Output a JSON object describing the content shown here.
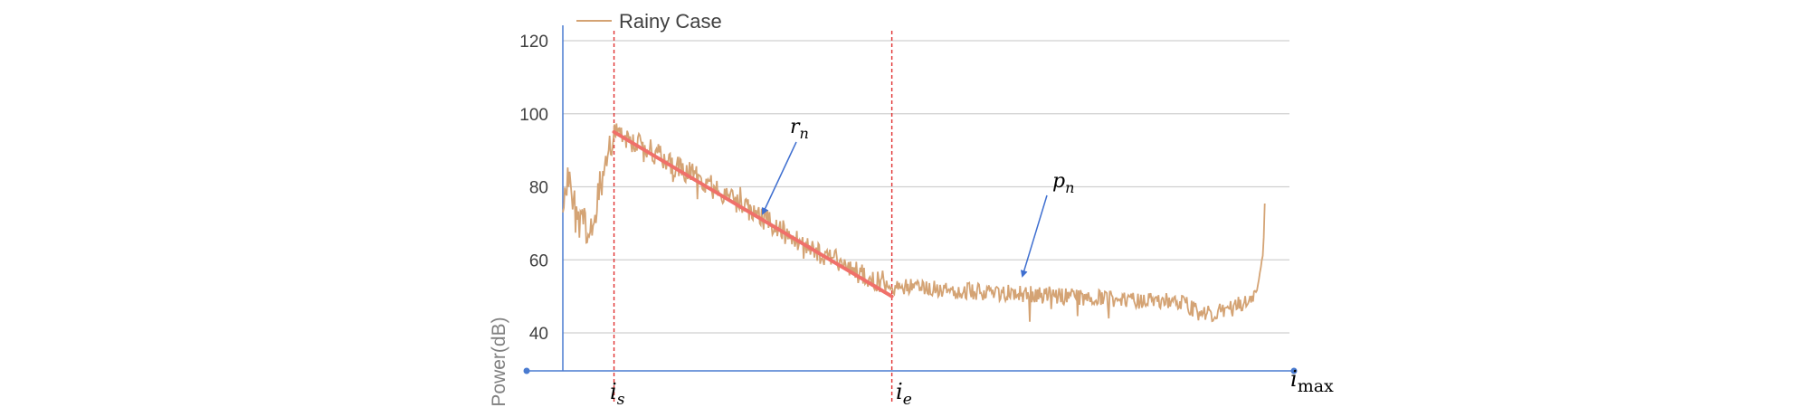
{
  "chart_data": {
    "type": "line",
    "ylabel": "Power(dB)",
    "ylim": [
      30,
      125
    ],
    "yticks": [
      "40",
      "60",
      "80",
      "100",
      "120"
    ],
    "ytick_values": [
      40,
      60,
      80,
      100,
      120
    ],
    "grid": true,
    "legend": {
      "placement": "top-left",
      "entries": [
        "Rainy Case"
      ]
    },
    "colors": {
      "series": "#d4a374",
      "fit": "#f0706a",
      "markers": "#e03030",
      "axis": "#4a7bd0",
      "arrow": "#3f6fd0",
      "grid": "#d0d0d0"
    },
    "series": [
      {
        "name": "Rainy Case",
        "x_range": [
          0,
          100
        ],
        "keypoints": [
          [
            0,
            78
          ],
          [
            1,
            84
          ],
          [
            2,
            68
          ],
          [
            3,
            70
          ],
          [
            4,
            66
          ],
          [
            5,
            80
          ],
          [
            6,
            88
          ],
          [
            7,
            95
          ],
          [
            8,
            94
          ],
          [
            10,
            92
          ],
          [
            12,
            90
          ],
          [
            15,
            86
          ],
          [
            18,
            83
          ],
          [
            22,
            78
          ],
          [
            26,
            73
          ],
          [
            30,
            68
          ],
          [
            34,
            63
          ],
          [
            38,
            59
          ],
          [
            42,
            55
          ],
          [
            45,
            53
          ],
          [
            50,
            52
          ],
          [
            60,
            51
          ],
          [
            70,
            50
          ],
          [
            78,
            49
          ],
          [
            83,
            49
          ],
          [
            86,
            47
          ],
          [
            89,
            45
          ],
          [
            92,
            47
          ],
          [
            94,
            50
          ],
          [
            95,
            52
          ],
          [
            95.8,
            62
          ],
          [
            96,
            76
          ]
        ]
      }
    ],
    "fit_line": {
      "name": "r_n",
      "from": [
        7,
        95
      ],
      "to": [
        45,
        50
      ]
    },
    "markers": [
      {
        "x": 7,
        "label": "i",
        "sub": "s"
      },
      {
        "x": 45,
        "label": "i",
        "sub": "e"
      }
    ],
    "x_end_label": {
      "label": "i",
      "sub": "max"
    },
    "annotations": [
      {
        "label": "r",
        "sub": "n",
        "target": "fit_line"
      },
      {
        "label": "p",
        "sub": "n",
        "target": "Rainy Case"
      }
    ]
  }
}
